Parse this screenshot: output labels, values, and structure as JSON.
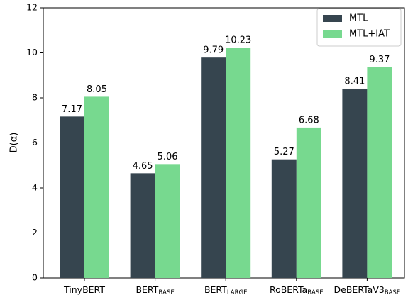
{
  "chart_data": {
    "type": "bar",
    "categories": [
      "TinyBERT",
      "BERT",
      "BERT",
      "RoBERTa",
      "DeBERTaV3"
    ],
    "category_subscripts": [
      null,
      "BASE",
      "LARGE",
      "BASE",
      "BASE"
    ],
    "series": [
      {
        "name": "MTL",
        "color": "#36454f",
        "values": [
          7.17,
          4.65,
          9.79,
          5.27,
          8.41
        ]
      },
      {
        "name": "MTL+IAT",
        "color": "#77d98f",
        "values": [
          8.05,
          5.06,
          10.23,
          6.68,
          9.37
        ]
      }
    ],
    "ylabel": "D(α)",
    "ylim": [
      0,
      12
    ],
    "yticks": [
      0,
      2,
      4,
      6,
      8,
      10,
      12
    ],
    "legend": "upper right"
  }
}
